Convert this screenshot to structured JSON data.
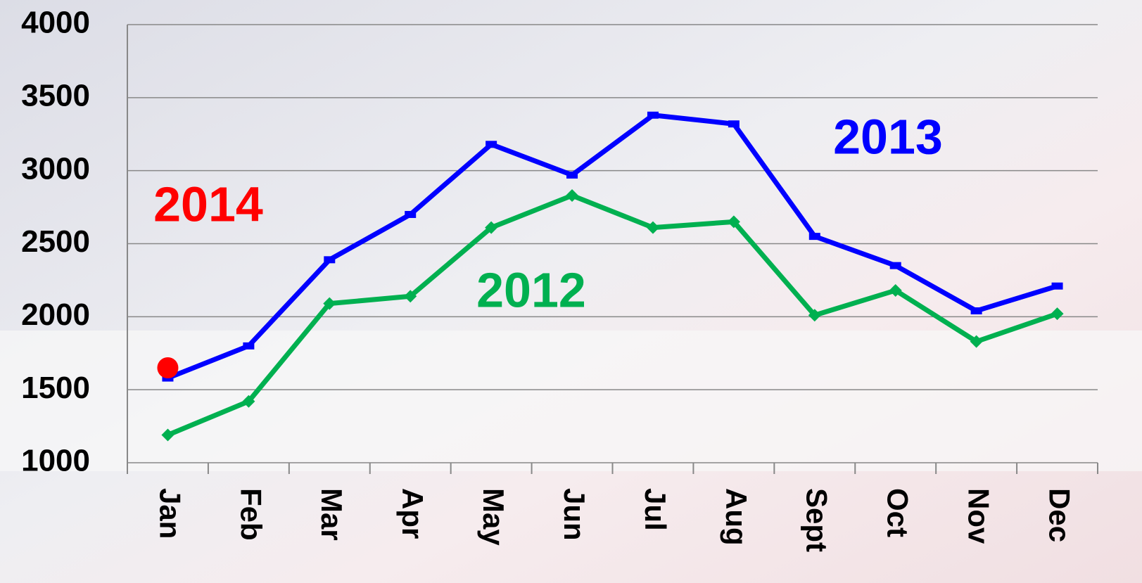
{
  "chart_data": {
    "type": "line",
    "categories": [
      "Jan",
      "Feb",
      "Mar",
      "Apr",
      "May",
      "Jun",
      "Jul",
      "Aug",
      "Sept",
      "Oct",
      "Nov",
      "Dec"
    ],
    "series": [
      {
        "name": "2013",
        "color": "#0000ff",
        "marker": "dash",
        "values": [
          1580,
          1800,
          2390,
          2700,
          3180,
          2970,
          3380,
          3320,
          2550,
          2350,
          2040,
          2210
        ]
      },
      {
        "name": "2012",
        "color": "#00b050",
        "marker": "diamond",
        "values": [
          1190,
          1420,
          2090,
          2140,
          2610,
          2830,
          2610,
          2650,
          2010,
          2180,
          1830,
          2020
        ]
      },
      {
        "name": "2014",
        "color": "#ff0000",
        "marker": "circle",
        "values": [
          1650,
          null,
          null,
          null,
          null,
          null,
          null,
          null,
          null,
          null,
          null,
          null
        ]
      }
    ],
    "ylim": [
      1000,
      4000
    ],
    "yticks": [
      1000,
      1500,
      2000,
      2500,
      3000,
      3500,
      4000
    ],
    "grid": true
  }
}
